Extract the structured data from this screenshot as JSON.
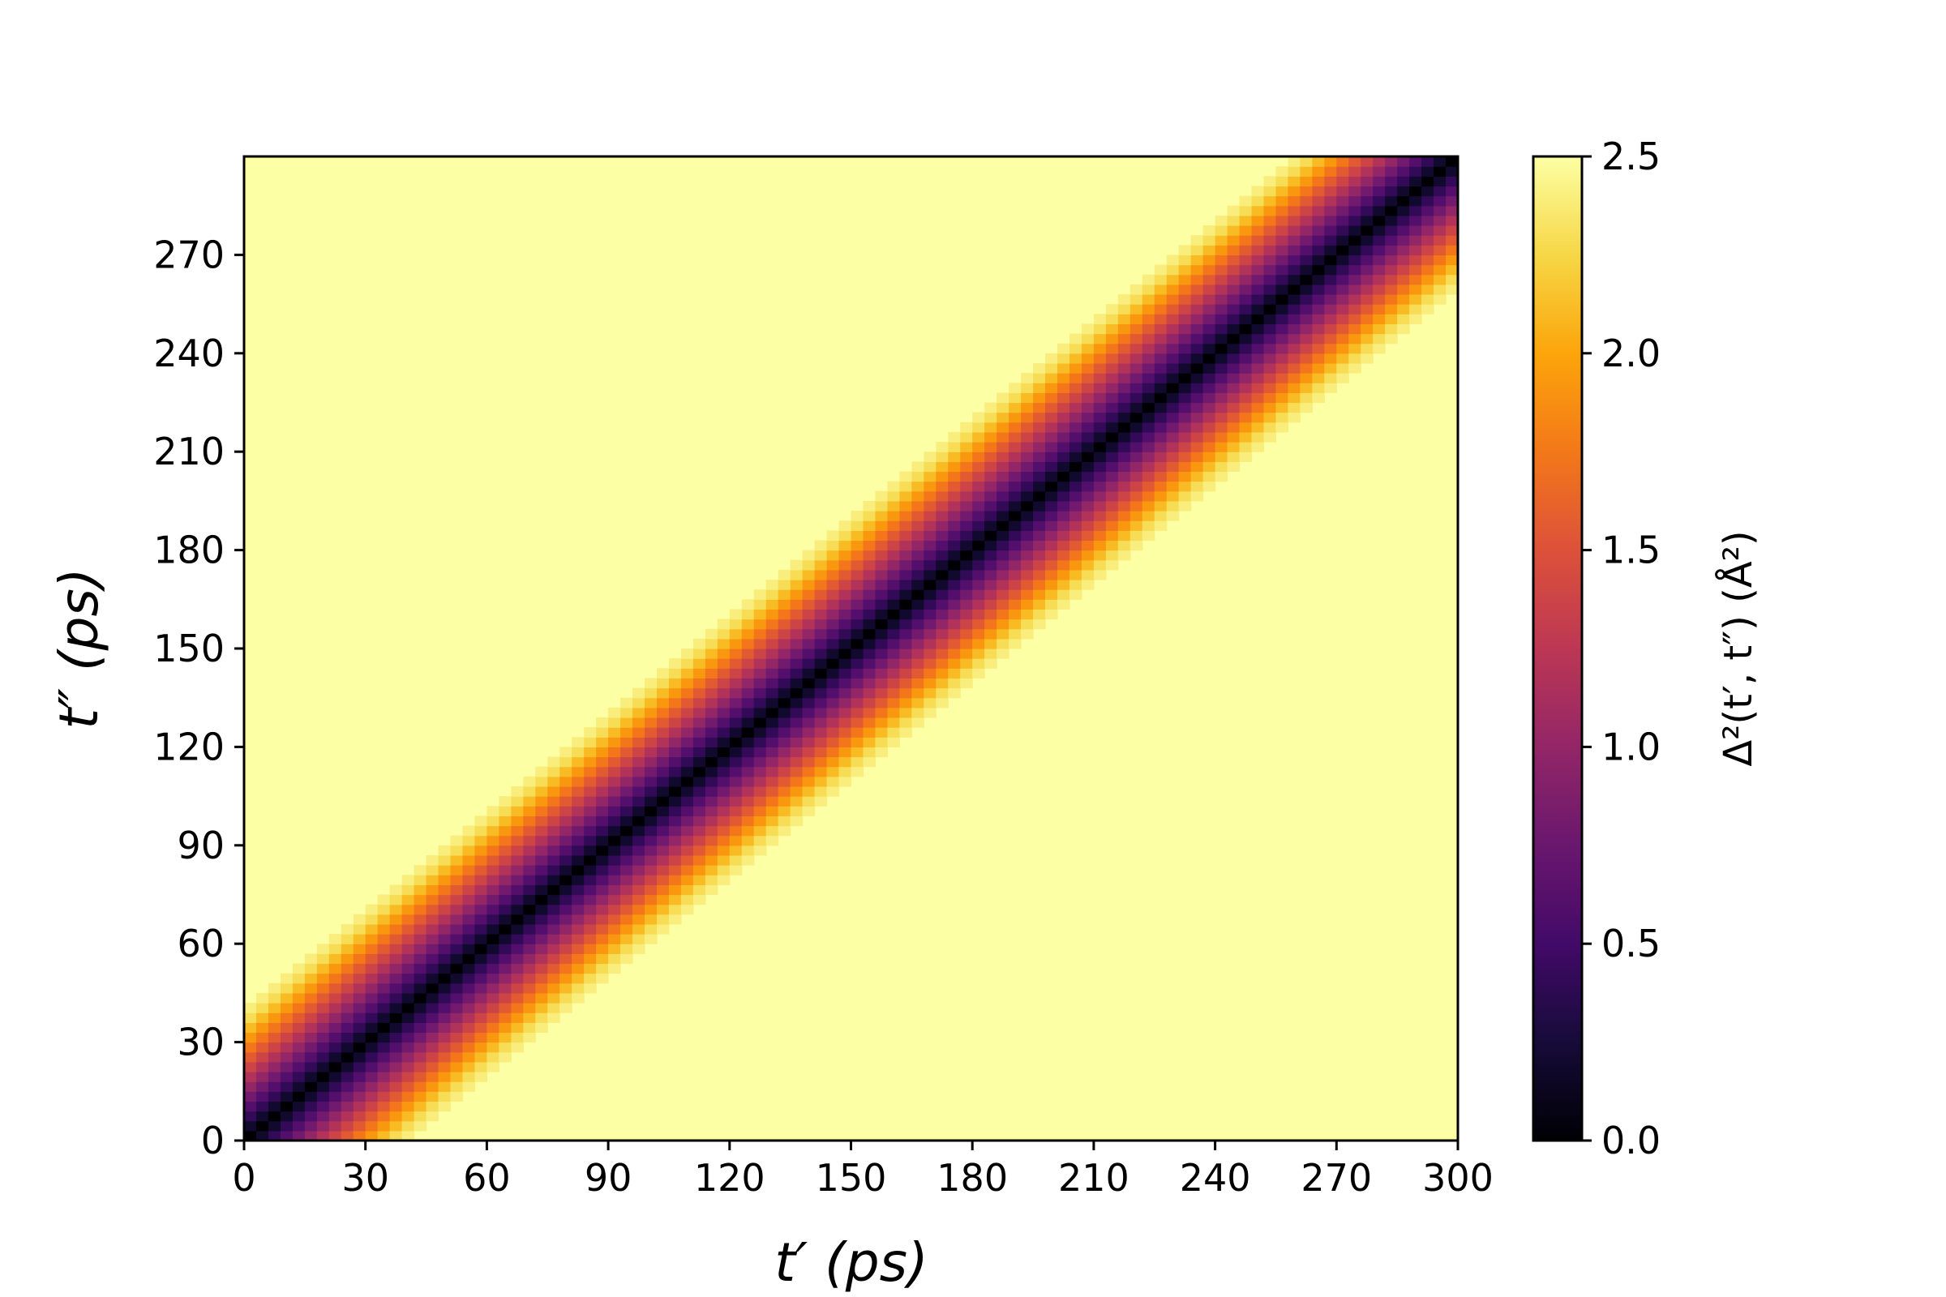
{
  "chart_data": {
    "type": "heatmap",
    "title": "",
    "xlabel": "t′ (ps)",
    "ylabel": "t″ (ps)",
    "colorbar_label": "Δ²(t′, t″) (Å²)",
    "xlim": [
      0,
      300
    ],
    "ylim": [
      0,
      300
    ],
    "x_ticks": [
      "0",
      "30",
      "60",
      "90",
      "120",
      "150",
      "180",
      "210",
      "240",
      "270",
      "300"
    ],
    "y_ticks": [
      "0",
      "30",
      "60",
      "90",
      "120",
      "150",
      "180",
      "210",
      "240",
      "270"
    ],
    "colorbar_ticks": [
      "0.0",
      "0.5",
      "1.0",
      "1.5",
      "2.0",
      "2.5"
    ],
    "clim": [
      0,
      2.5
    ],
    "colormap": "inferno",
    "grid": false,
    "grid_cells": 100,
    "cell_size_ps": 3,
    "value_model": "Δ² ≈ min(2.5, 0.072·|t′ − t″|^0.97); 0 on the diagonal, saturating at 2.5 for |t′ − t″| ≳ 45 ps",
    "profile_vs_lag": [
      {
        "lag_ps": 0,
        "value": 0.0
      },
      {
        "lag_ps": 6,
        "value": 0.41
      },
      {
        "lag_ps": 12,
        "value": 0.8
      },
      {
        "lag_ps": 18,
        "value": 1.19
      },
      {
        "lag_ps": 24,
        "value": 1.56
      },
      {
        "lag_ps": 30,
        "value": 1.93
      },
      {
        "lag_ps": 36,
        "value": 2.29
      },
      {
        "lag_ps": 42,
        "value": 2.5
      },
      {
        "lag_ps": 60,
        "value": 2.5
      }
    ],
    "colors": {
      "low": "#000004",
      "high": "#fcffa4",
      "background": "#ffffff",
      "frame": "#000000"
    }
  }
}
